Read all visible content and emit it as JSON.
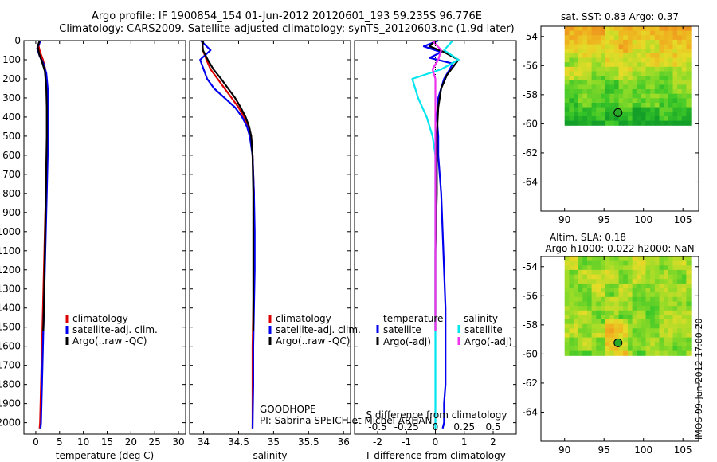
{
  "header": {
    "title_line1": "Argo profile: IF 1900854_154 01-Jun-2012 20120601_193 59.235S 96.776E",
    "title_line2": "Climatology: CARS2009. Satellite-adjusted climatology: synTS_20120603.nc (1.9d later)"
  },
  "colors": {
    "climatology": "#dd0000",
    "satellite": "#0000ee",
    "argo": "#000000",
    "satellite_salinity": "#00e5ee",
    "argo_salinity": "#ee33ee"
  },
  "depth_axis": {
    "ticks": [
      0,
      100,
      200,
      300,
      400,
      500,
      600,
      700,
      800,
      900,
      1000,
      1100,
      1200,
      1300,
      1400,
      1500,
      1600,
      1700,
      1800,
      1900,
      2000
    ]
  },
  "chart_data": [
    {
      "type": "line",
      "panel": "temperature",
      "xlabel": "temperature (deg C)",
      "xlim": [
        -2.5,
        31.5
      ],
      "ylim": [
        0,
        2060
      ],
      "xticks": [
        0,
        5,
        10,
        15,
        20,
        25,
        30
      ],
      "legend": [
        "climatology",
        "satellite-adj. clim.",
        "Argo(..raw -QC)"
      ],
      "legend_position": "middle-center",
      "series": [
        {
          "name": "climatology",
          "color_key": "climatology",
          "x": [
            0.9,
            0.6,
            0.9,
            1.5,
            2.0,
            2.3,
            2.4,
            2.4,
            2.3,
            2.2,
            2.1,
            2.0,
            1.9,
            1.8,
            1.7,
            1.6,
            1.5,
            1.4,
            1.3,
            1.2,
            1.1,
            1.0,
            0.9,
            0.8
          ],
          "y": [
            0,
            30,
            60,
            100,
            150,
            250,
            350,
            500,
            600,
            700,
            800,
            900,
            1000,
            1100,
            1200,
            1300,
            1400,
            1500,
            1600,
            1700,
            1800,
            1900,
            2000,
            2030
          ]
        },
        {
          "name": "satellite-adj. clim.",
          "color_key": "satellite",
          "x": [
            1.0,
            0.3,
            0.8,
            1.6,
            2.2,
            2.5,
            2.6,
            2.6,
            2.5,
            2.4,
            2.3,
            2.2,
            2.1,
            2.0,
            1.9,
            1.8,
            1.7,
            1.6,
            1.5,
            1.4,
            1.3,
            1.2,
            1.1,
            1.0
          ],
          "y": [
            0,
            40,
            80,
            120,
            170,
            250,
            350,
            500,
            600,
            700,
            800,
            900,
            1000,
            1100,
            1200,
            1300,
            1400,
            1500,
            1600,
            1700,
            1800,
            1900,
            2000,
            2030
          ]
        },
        {
          "name": "Argo(..raw -QC)",
          "color_key": "argo",
          "x": [
            0.8,
            0.4,
            0.7,
            1.3,
            1.9,
            2.2,
            2.3,
            2.3,
            2.2,
            2.1,
            2.0,
            1.9,
            1.8,
            1.7,
            1.6,
            1.55
          ],
          "y": [
            0,
            30,
            70,
            110,
            160,
            250,
            350,
            500,
            650,
            800,
            950,
            1100,
            1250,
            1400,
            1500,
            1520
          ]
        }
      ]
    },
    {
      "type": "line",
      "panel": "salinity",
      "xlabel": "salinity",
      "xlim": [
        33.8,
        36.1
      ],
      "ylim": [
        0,
        2060
      ],
      "xticks": [
        34,
        34.5,
        35,
        35.5,
        36
      ],
      "xtick_labels": [
        "34",
        "34.5",
        "35",
        "35.5",
        "36"
      ],
      "legend": [
        "climatology",
        "satellite-adj. clim.",
        "Argo(..raw -QC)"
      ],
      "legend_position": "middle-right",
      "annotation": [
        "GOODHOPE",
        "PI: Sabrina SPEICH et Michel ARHAN"
      ],
      "series": [
        {
          "name": "climatology",
          "color_key": "climatology",
          "x": [
            33.98,
            33.99,
            34.04,
            34.1,
            34.2,
            34.3,
            34.4,
            34.5,
            34.58,
            34.64,
            34.68,
            34.7,
            34.71,
            34.72,
            34.72,
            34.72,
            34.71,
            34.7,
            34.7,
            34.7,
            34.7
          ],
          "y": [
            0,
            50,
            100,
            150,
            200,
            250,
            300,
            350,
            400,
            450,
            500,
            600,
            700,
            800,
            1000,
            1200,
            1400,
            1600,
            1800,
            2000,
            2030
          ]
        },
        {
          "name": "satellite-adj. clim.",
          "color_key": "satellite",
          "x": [
            33.96,
            34.1,
            33.95,
            34.0,
            34.05,
            34.15,
            34.3,
            34.45,
            34.55,
            34.62,
            34.66,
            34.7,
            34.71,
            34.72,
            34.73,
            34.73,
            34.72,
            34.71,
            34.71,
            34.7
          ],
          "y": [
            0,
            50,
            100,
            150,
            200,
            250,
            300,
            350,
            400,
            450,
            500,
            600,
            700,
            800,
            1000,
            1200,
            1400,
            1600,
            1800,
            2030
          ]
        },
        {
          "name": "Argo(..raw -QC)",
          "color_key": "argo",
          "x": [
            33.98,
            33.99,
            34.06,
            34.14,
            34.25,
            34.35,
            34.45,
            34.53,
            34.6,
            34.65,
            34.68,
            34.7,
            34.71,
            34.71,
            34.71
          ],
          "y": [
            0,
            50,
            100,
            150,
            200,
            250,
            300,
            350,
            400,
            450,
            500,
            600,
            800,
            1100,
            1520
          ]
        }
      ]
    },
    {
      "type": "line",
      "panel": "difference",
      "xlabel": "T difference from climatology",
      "xlabel_top": "S difference from climatology",
      "xlim": [
        -2.8,
        2.8
      ],
      "ylim": [
        0,
        2060
      ],
      "xticks": [
        -2,
        -1,
        0,
        1,
        2
      ],
      "s_ticks": [
        "-0.5",
        "-0.25",
        "0",
        "0.25",
        "0.5"
      ],
      "s_scale": 4,
      "legend_temperature_title": "temperature",
      "legend_salinity_title": "salinity",
      "legend_temperature": [
        "satellite",
        "Argo(-adj)"
      ],
      "legend_salinity": [
        "satellite",
        "Argo(-adj)"
      ],
      "series": [
        {
          "name": "temperature satellite",
          "color_key": "satellite",
          "x": [
            0.1,
            -0.4,
            0.2,
            -0.2,
            0.6,
            0.5,
            0.3,
            0.1,
            0.05,
            0.1,
            0.1,
            0.15,
            0.2,
            0.25,
            0.3,
            0.35,
            0.35,
            0.35,
            0.3,
            0.3,
            0.25
          ],
          "y": [
            0,
            30,
            60,
            90,
            120,
            150,
            200,
            300,
            400,
            500,
            600,
            700,
            800,
            1000,
            1200,
            1400,
            1600,
            1800,
            1900,
            2000,
            2030
          ]
        },
        {
          "name": "temperature Argo(-adj)",
          "color_key": "argo",
          "x": [
            0.0,
            -0.2,
            0.3,
            0.8,
            0.6,
            0.4,
            0.2,
            0.1,
            0.05,
            0.05,
            0.0,
            0.0,
            0.0
          ],
          "y": [
            0,
            30,
            60,
            100,
            140,
            180,
            250,
            350,
            500,
            800,
            1100,
            1400,
            1520
          ]
        },
        {
          "name": "salinity satellite",
          "color_key": "satellite_salinity",
          "x": [
            0.6,
            0.3,
            0.8,
            0.2,
            -0.8,
            -0.6,
            -0.3,
            -0.1,
            0.0,
            0.0,
            0.0,
            0.0,
            0.0
          ],
          "y": [
            0,
            50,
            100,
            150,
            200,
            300,
            400,
            500,
            600,
            700,
            800,
            1000,
            2030
          ]
        },
        {
          "name": "salinity Argo(-adj)",
          "color_key": "argo_salinity",
          "x": [
            -0.1,
            0.2,
            0.1,
            -0.1,
            0.0,
            0.0,
            0.0,
            0.0,
            0.0,
            0.0
          ],
          "y": [
            0,
            50,
            100,
            150,
            200,
            300,
            500,
            800,
            1100,
            1520
          ]
        }
      ]
    },
    {
      "type": "heatmap",
      "panel": "sat_sst_map",
      "title": "sat. SST: 0.83 Argo: 0.37",
      "xlim": [
        87,
        107
      ],
      "ylim": [
        -66,
        -53.3
      ],
      "data_lon": [
        90,
        106
      ],
      "data_lat": [
        -60.1,
        -53.3
      ],
      "xticks": [
        90,
        95,
        100,
        105
      ],
      "yticks": [
        -54,
        -56,
        -58,
        -60,
        -62,
        -64
      ],
      "float_position": [
        96.776,
        -59.235
      ]
    },
    {
      "type": "heatmap",
      "panel": "altim_sla_map",
      "title_line1": "Altim. SLA: 0.18",
      "title_line2": "Argo h1000: 0.022 h2000: NaN",
      "xlim": [
        87,
        107
      ],
      "ylim": [
        -66,
        -53.3
      ],
      "data_lon": [
        90,
        106
      ],
      "data_lat": [
        -60.1,
        -53.3
      ],
      "xticks": [
        90,
        95,
        100,
        105
      ],
      "yticks": [
        -54,
        -56,
        -58,
        -60,
        -62,
        -64
      ],
      "float_position": [
        96.776,
        -59.235
      ]
    }
  ],
  "footer": {
    "stamp": "IMOS 09-Jun-2012 17:00:20"
  }
}
